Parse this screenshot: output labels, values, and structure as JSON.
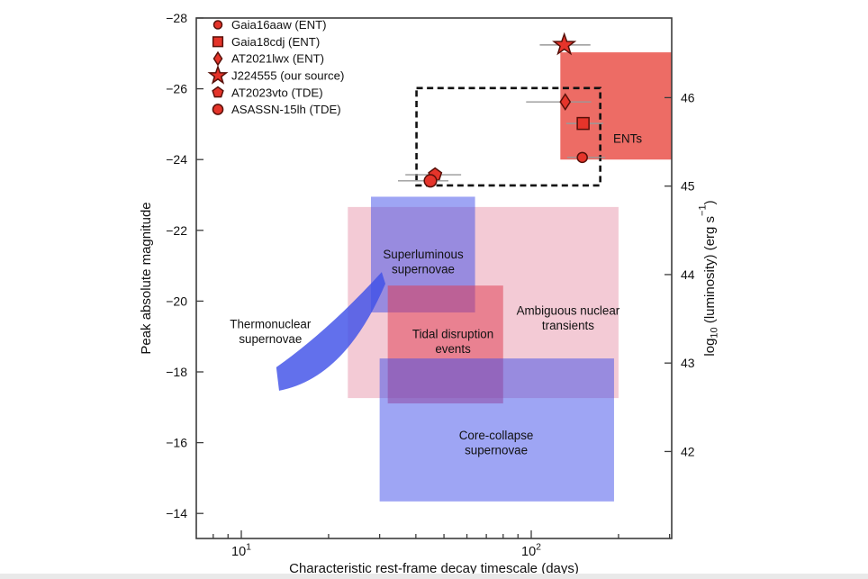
{
  "page": {
    "background": "#ffffff",
    "bottom_strip_color": "#e9e9e9"
  },
  "chart_data": {
    "type": "scatter",
    "x_scale": "log",
    "grid": false,
    "xlabel": "Characteristic rest-frame decay timescale (days)",
    "ylabel_left": "Peak absolute magnitude",
    "ylabel_right_parts": [
      {
        "t": "log"
      },
      {
        "t": "10",
        "pos": "sub"
      },
      {
        "t": " (luminosity) (erg s"
      },
      {
        "t": "−1",
        "pos": "sup"
      },
      {
        "t": ")"
      }
    ],
    "xlim": [
      7,
      305
    ],
    "ylim_mag": [
      -28,
      -13.3
    ],
    "x_major_ticks": [
      {
        "value": 10,
        "base": "10",
        "exp": "1"
      },
      {
        "value": 100,
        "base": "10",
        "exp": "2"
      }
    ],
    "x_minor_ticks": [
      8,
      9,
      20,
      30,
      40,
      50,
      60,
      70,
      80,
      90,
      200,
      300
    ],
    "y_ticks_mag": [
      -28,
      -26,
      -24,
      -22,
      -20,
      -18,
      -16,
      -14
    ],
    "right_axis": {
      "ticks_logL": [
        46,
        45,
        44,
        43,
        42
      ],
      "mag_at_logL_43": -18.25,
      "mag_per_dex": 2.5
    },
    "regions": [
      {
        "id": "ambiguous-nuclear-transients",
        "label_lines": [
          "Ambiguous nuclear",
          "transients"
        ],
        "x": [
          23.3,
          200
        ],
        "mag": [
          -22.66,
          -17.26
        ],
        "fill": "rgba(219,95,126,0.33)",
        "label_at": {
          "x": 134,
          "mag": -19.53
        }
      },
      {
        "id": "superluminous-supernovae",
        "label_lines": [
          "Superluminous",
          "supernovae"
        ],
        "x": [
          28,
          64
        ],
        "mag": [
          -22.95,
          -19.68
        ],
        "fill": "rgba(62,76,233,0.5)",
        "label_at": {
          "x": 42.4,
          "mag": -21.12
        }
      },
      {
        "id": "tidal-disruption-events",
        "label_lines": [
          "Tidal disruption",
          "events"
        ],
        "x": [
          32,
          80
        ],
        "mag": [
          -20.44,
          -17.11
        ],
        "fill": "rgba(224,56,78,0.5)",
        "label_at": {
          "x": 53.7,
          "mag": -18.87
        }
      },
      {
        "id": "core-collapse-supernovae",
        "label_lines": [
          "Core-collapse",
          "supernovae"
        ],
        "x": [
          30,
          193
        ],
        "mag": [
          -18.38,
          -14.34
        ],
        "fill": "rgba(62,76,233,0.5)",
        "label_at": {
          "x": 75.7,
          "mag": -16.0
        }
      },
      {
        "id": "ents",
        "label_lines": [
          "ENTs"
        ],
        "x": [
          126,
          330
        ],
        "mag": [
          -27.03,
          -24.0
        ],
        "fill": "rgba(232,66,58,0.78)",
        "label_at": {
          "x": 215,
          "mag": -24.6
        }
      }
    ],
    "thermonuclear_band": {
      "id": "thermonuclear-supernovae",
      "label_lines": [
        "Thermonuclear",
        "supernovae"
      ],
      "label_at": {
        "x": 12.6,
        "mag": -19.15
      },
      "fill": "rgba(64,80,232,0.82)",
      "upper": [
        [
          13.2,
          -18.13
        ],
        [
          20.0,
          -19.32
        ],
        [
          30.5,
          -20.82
        ]
      ],
      "tip": [
        31.4,
        -20.49
      ],
      "lower": [
        [
          21.5,
          -18.4
        ],
        [
          13.5,
          -17.47
        ]
      ]
    },
    "dashed_box": {
      "x": [
        40.2,
        173
      ],
      "mag": [
        -26.02,
        -23.27
      ]
    },
    "points": [
      {
        "name": "Gaia16aaw",
        "shape": "circle-small",
        "x": 150,
        "mag": -24.06,
        "xerr": [
          133,
          180
        ]
      },
      {
        "name": "Gaia18cdj",
        "shape": "square",
        "x": 151,
        "mag": -25.02,
        "xerr": [
          132,
          177
        ]
      },
      {
        "name": "AT2021lwx",
        "shape": "diamond",
        "x": 131,
        "mag": -25.63,
        "xerr": [
          96,
          161
        ]
      },
      {
        "name": "J224555",
        "shape": "star",
        "x": 130,
        "mag": -27.24,
        "xerr": [
          107,
          160
        ]
      },
      {
        "name": "AT2023vto",
        "shape": "pentagon",
        "x": 46.6,
        "mag": -23.57,
        "xerr": [
          36.8,
          57.3
        ]
      },
      {
        "name": "ASASSN-15lh",
        "shape": "circle-large",
        "x": 44.9,
        "mag": -23.4,
        "xerr": [
          34.7,
          51.8
        ]
      }
    ],
    "legend": [
      {
        "label": "Gaia16aaw (ENT)",
        "shape": "circle-small"
      },
      {
        "label": "Gaia18cdj (ENT)",
        "shape": "square"
      },
      {
        "label": "AT2021lwx (ENT)",
        "shape": "diamond"
      },
      {
        "label": "J224555 (our source)",
        "shape": "star"
      },
      {
        "label": "AT2023vto (TDE)",
        "shape": "pentagon"
      },
      {
        "label": "ASASSN-15lh (TDE)",
        "shape": "circle-large"
      }
    ],
    "marker_style": {
      "fill": "#e5342a",
      "edge": "#571009",
      "error_bar_color": "#999999"
    },
    "frame_color": "#3c3c3c",
    "dashed_box_color": "#111111"
  }
}
